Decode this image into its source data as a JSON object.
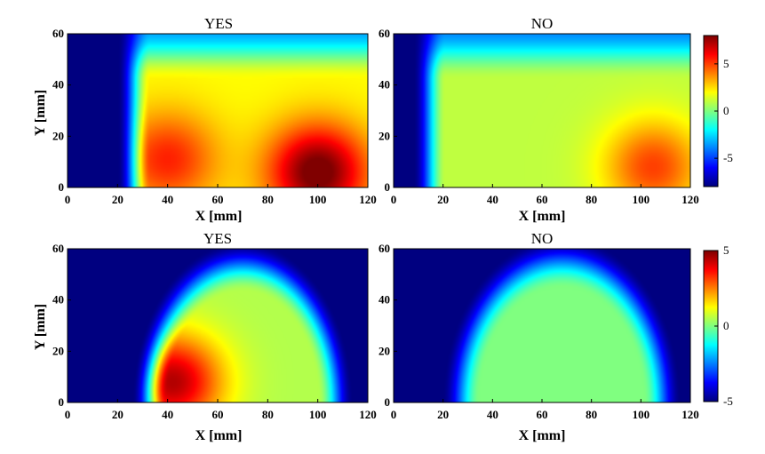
{
  "chart_data": [
    {
      "type": "heatmap",
      "title": "YES",
      "xlabel": "X [mm]",
      "ylabel": "Y [mm]",
      "xlim": [
        0,
        120
      ],
      "ylim": [
        0,
        60
      ],
      "xticks": [
        "0",
        "20",
        "40",
        "60",
        "80",
        "100",
        "120"
      ],
      "yticks": [
        "0",
        "20",
        "40",
        "60"
      ],
      "colorscale": "jet",
      "clim": [
        -8,
        8
      ],
      "background_value": -8,
      "base_value": 2,
      "edge_x": 27,
      "blobs": [
        {
          "x": 100,
          "y": 6,
          "value": 8.5
        },
        {
          "x": 40,
          "y": 11,
          "value": 5.5
        }
      ]
    },
    {
      "type": "heatmap",
      "title": "NO",
      "xlabel": "X [mm]",
      "ylabel": "",
      "xlim": [
        0,
        120
      ],
      "ylim": [
        0,
        60
      ],
      "xticks": [
        "0",
        "20",
        "40",
        "60",
        "80",
        "100",
        "120"
      ],
      "yticks": [
        "0",
        "20",
        "40",
        "60"
      ],
      "colorscale": "jet",
      "clim": [
        -8,
        8
      ],
      "background_value": -8,
      "base_value": 1,
      "edge_x": 15,
      "blobs": [
        {
          "x": 105,
          "y": 8,
          "value": 5
        }
      ],
      "colorbar": {
        "ticks": [
          5,
          0,
          -5
        ],
        "tick_labels": [
          "5",
          "0",
          "-5"
        ]
      }
    },
    {
      "type": "heatmap",
      "title": "YES",
      "xlabel": "X [mm]",
      "ylabel": "Y [mm]",
      "xlim": [
        0,
        120
      ],
      "ylim": [
        0,
        60
      ],
      "xticks": [
        "0",
        "20",
        "40",
        "60",
        "80",
        "100",
        "120"
      ],
      "yticks": [
        "0",
        "20",
        "40",
        "60"
      ],
      "colorscale": "jet",
      "clim": [
        -5,
        5
      ],
      "background_value": -5,
      "base_value": 0.5,
      "dome_center": [
        70,
        0
      ],
      "dome_radius": [
        42,
        60
      ],
      "blobs": [
        {
          "x": 42,
          "y": 8,
          "value": 4.5
        }
      ]
    },
    {
      "type": "heatmap",
      "title": "NO",
      "xlabel": "X [mm]",
      "ylabel": "",
      "xlim": [
        0,
        120
      ],
      "ylim": [
        0,
        60
      ],
      "xticks": [
        "0",
        "20",
        "40",
        "60",
        "80",
        "100",
        "120"
      ],
      "yticks": [
        "0",
        "20",
        "40",
        "60"
      ],
      "colorscale": "jet",
      "clim": [
        -5,
        5
      ],
      "background_value": -5,
      "base_value": 0,
      "dome_center": [
        68,
        0
      ],
      "dome_radius": [
        46,
        62
      ],
      "blobs": [],
      "colorbar": {
        "ticks": [
          5,
          0,
          -5
        ],
        "tick_labels": [
          "5",
          "0",
          "-5"
        ]
      }
    }
  ]
}
